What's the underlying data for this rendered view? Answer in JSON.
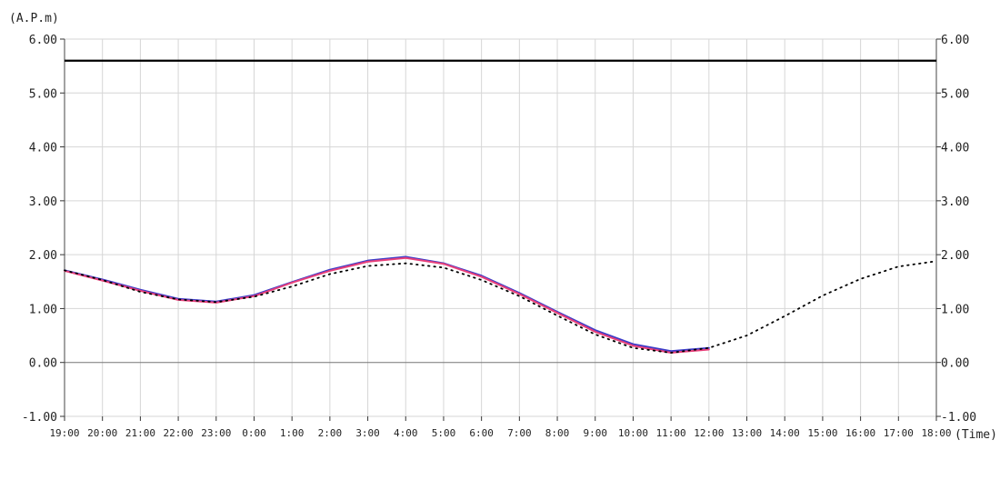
{
  "chart_data": {
    "type": "line",
    "ylabel": "(A.P.m)",
    "xlabel": "(Time)",
    "ylim": [
      -1.0,
      6.0
    ],
    "y_ticks": [
      "-1.00",
      "0.00",
      "1.00",
      "2.00",
      "3.00",
      "4.00",
      "5.00",
      "6.00"
    ],
    "categories": [
      "19:00",
      "20:00",
      "21:00",
      "22:00",
      "23:00",
      "0:00",
      "1:00",
      "2:00",
      "3:00",
      "4:00",
      "5:00",
      "6:00",
      "7:00",
      "8:00",
      "9:00",
      "10:00",
      "11:00",
      "12:00",
      "13:00",
      "14:00",
      "15:00",
      "16:00",
      "17:00",
      "18:00"
    ],
    "grid": true,
    "reference_line": {
      "value": 5.6,
      "color": "#000000"
    },
    "series": [
      {
        "style": "solid",
        "color": "#3c3cc8",
        "values": [
          1.71,
          1.54,
          1.35,
          1.18,
          1.13,
          1.25,
          1.49,
          1.72,
          1.89,
          1.96,
          1.84,
          1.61,
          1.29,
          0.94,
          0.6,
          0.34,
          0.21,
          0.27,
          null,
          null,
          null,
          null,
          null,
          null
        ]
      },
      {
        "style": "solid",
        "color": "#e8407a",
        "values": [
          1.7,
          1.52,
          1.33,
          1.16,
          1.11,
          1.23,
          1.48,
          1.7,
          1.87,
          1.94,
          1.83,
          1.59,
          1.27,
          0.92,
          0.57,
          0.31,
          0.18,
          0.24,
          null,
          null,
          null,
          null,
          null,
          null
        ]
      },
      {
        "style": "dotted",
        "color": "#000000",
        "values": [
          1.71,
          1.53,
          1.31,
          1.17,
          1.12,
          1.22,
          1.41,
          1.64,
          1.79,
          1.84,
          1.76,
          1.53,
          1.23,
          0.87,
          0.52,
          0.27,
          0.18,
          0.27,
          0.5,
          0.86,
          1.24,
          1.55,
          1.78,
          1.88
        ]
      }
    ]
  }
}
